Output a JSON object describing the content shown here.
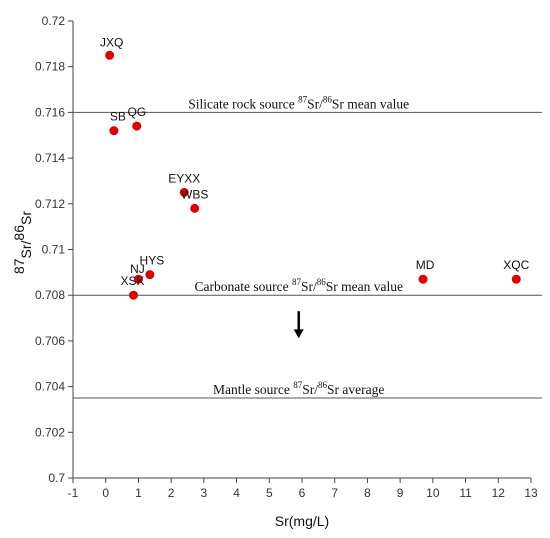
{
  "chart_data": {
    "type": "scatter",
    "xlabel": "Sr(mg/L)",
    "ylabel": {
      "sup1": "87",
      "t1": "Sr/",
      "sup2": "86",
      "t2": "Sr"
    },
    "xlim": [
      -1,
      13
    ],
    "ylim": [
      0.7,
      0.72
    ],
    "xticks": [
      "-1",
      "0",
      "1",
      "2",
      "3",
      "4",
      "5",
      "6",
      "7",
      "8",
      "9",
      "10",
      "11",
      "12",
      "13"
    ],
    "yticks": [
      "0.7",
      "0.702",
      "0.704",
      "0.706",
      "0.708",
      "0.71",
      "0.712",
      "0.714",
      "0.716",
      "0.718",
      "0.72"
    ],
    "grid": false,
    "marker_color": "#e00000",
    "points": [
      {
        "label": "JXQ",
        "x": 0.12,
        "y": 0.7185
      },
      {
        "label": "SB",
        "x": 0.25,
        "y": 0.7152
      },
      {
        "label": "QG",
        "x": 0.95,
        "y": 0.7154
      },
      {
        "label": "EYXX",
        "x": 2.4,
        "y": 0.7125
      },
      {
        "label": "WBS",
        "x": 2.72,
        "y": 0.7118
      },
      {
        "label": "HYS",
        "x": 1.35,
        "y": 0.7089
      },
      {
        "label": "NJ",
        "x": 1.0,
        "y": 0.7087
      },
      {
        "label": "XSK",
        "x": 0.85,
        "y": 0.708
      },
      {
        "label": "MD",
        "x": 9.7,
        "y": 0.7087
      },
      {
        "label": "XQC",
        "x": 12.55,
        "y": 0.7087
      }
    ],
    "reference_lines": [
      {
        "y": 0.716,
        "pre": "Silicate rock source ",
        "sup1": "87",
        "mid": "Sr/",
        "sup2": "86",
        "post": "Sr mean value"
      },
      {
        "y": 0.708,
        "pre": "Carbonate source ",
        "sup1": "87",
        "mid": "Sr/",
        "sup2": "86",
        "post": "Sr mean value"
      },
      {
        "y": 0.7035,
        "pre": "Mantle source ",
        "sup1": "87",
        "mid": "Sr/",
        "sup2": "86",
        "post": "Sr average"
      }
    ],
    "annotations": [
      {
        "type": "arrow-down",
        "x": 5.9,
        "y_from": 0.7073,
        "y_to": 0.7062
      }
    ]
  }
}
